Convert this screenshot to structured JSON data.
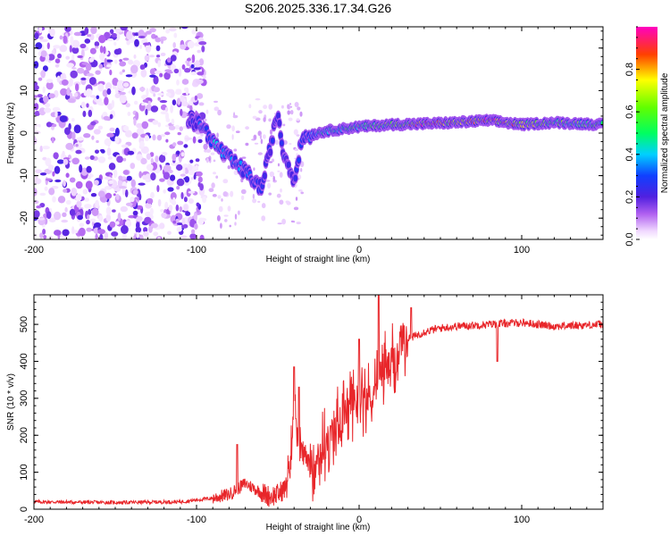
{
  "title": "S206.2025.336.17.34.G26",
  "chart_data": [
    {
      "type": "heatmap",
      "xlabel": "Height of straight line (km)",
      "ylabel": "Frequency (Hz)",
      "xlim": [
        -200,
        150
      ],
      "ylim": [
        -25,
        25
      ],
      "xticks": [
        -200,
        -100,
        0,
        100
      ],
      "yticks": [
        -20,
        -10,
        0,
        10,
        20
      ],
      "colorbar": {
        "label": "Normalized spectral amplitude",
        "range": [
          0,
          1
        ],
        "ticks": [
          0.0,
          0.2,
          0.4,
          0.6,
          0.8
        ],
        "tick_labels": [
          "0.0",
          "0.2",
          "0.4",
          "0.6",
          "0.8"
        ]
      },
      "noise_region_x": [
        -200,
        -105
      ],
      "ridge": [
        {
          "x": -105,
          "f": 3,
          "amp": 0.15
        },
        {
          "x": -97,
          "f": 2,
          "amp": 0.3
        },
        {
          "x": -90,
          "f": -2,
          "amp": 0.35
        },
        {
          "x": -80,
          "f": -6,
          "amp": 0.35
        },
        {
          "x": -70,
          "f": -9,
          "amp": 0.3
        },
        {
          "x": -60,
          "f": -13,
          "amp": 0.25
        },
        {
          "x": -50,
          "f": 5,
          "amp": 0.2
        },
        {
          "x": -47,
          "f": -4,
          "amp": 0.25
        },
        {
          "x": -40,
          "f": -11,
          "amp": 0.2
        },
        {
          "x": -35,
          "f": -1,
          "amp": 0.25
        },
        {
          "x": -20,
          "f": 0.5,
          "amp": 0.45
        },
        {
          "x": 0,
          "f": 1.5,
          "amp": 0.5
        },
        {
          "x": 20,
          "f": 2,
          "amp": 0.6
        },
        {
          "x": 40,
          "f": 2.2,
          "amp": 0.8
        },
        {
          "x": 60,
          "f": 2.5,
          "amp": 0.7
        },
        {
          "x": 80,
          "f": 3,
          "amp": 0.85
        },
        {
          "x": 100,
          "f": 2,
          "amp": 0.7
        },
        {
          "x": 120,
          "f": 2.5,
          "amp": 0.55
        },
        {
          "x": 150,
          "f": 2,
          "amp": 0.5
        }
      ]
    },
    {
      "type": "line",
      "xlabel": "Height of straight line (km)",
      "ylabel": "SNR (10 * v/v)",
      "xlim": [
        -200,
        150
      ],
      "ylim": [
        0,
        580
      ],
      "xticks": [
        -200,
        -100,
        0,
        100
      ],
      "yticks": [
        0,
        100,
        200,
        300,
        400,
        500
      ],
      "color": "#e8262a",
      "series": [
        {
          "name": "SNR",
          "x": [
            -200,
            -150,
            -110,
            -90,
            -80,
            -70,
            -60,
            -55,
            -50,
            -45,
            -42,
            -40,
            -38,
            -35,
            -30,
            -20,
            -10,
            0,
            5,
            10,
            15,
            20,
            25,
            30,
            40,
            50,
            60,
            80,
            100,
            120,
            150
          ],
          "values": [
            20,
            18,
            20,
            30,
            40,
            70,
            45,
            35,
            40,
            60,
            150,
            300,
            200,
            150,
            120,
            180,
            250,
            320,
            290,
            330,
            380,
            390,
            420,
            460,
            480,
            490,
            495,
            500,
            505,
            495,
            500
          ]
        }
      ],
      "spikes": [
        {
          "x": -75,
          "y": 175
        },
        {
          "x": -40,
          "y": 385
        },
        {
          "x": -37,
          "y": 330
        },
        {
          "x": 0,
          "y": 460
        },
        {
          "x": 12,
          "y": 580
        },
        {
          "x": 32,
          "y": 545
        },
        {
          "x": 85,
          "y": 400
        }
      ]
    }
  ]
}
